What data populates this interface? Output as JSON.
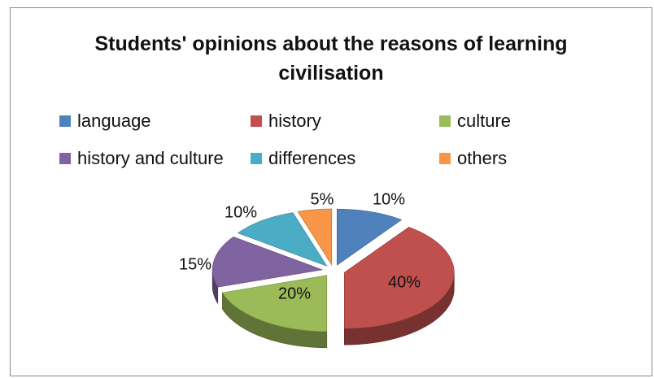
{
  "chart_data": {
    "type": "pie",
    "title": "Students' opinions about the reasons of learning civilisation",
    "title_lines": [
      "Students' opinions about the reasons of learning",
      "civilisation"
    ],
    "legend_position": "top",
    "exploded": true,
    "three_d": true,
    "slices": [
      {
        "label": "language",
        "value": 10,
        "value_label": "10%",
        "color": "#4F81BD"
      },
      {
        "label": "history",
        "value": 40,
        "value_label": "40%",
        "color": "#C0504D"
      },
      {
        "label": "culture",
        "value": 20,
        "value_label": "20%",
        "color": "#9BBB59"
      },
      {
        "label": "history and culture",
        "value": 15,
        "value_label": "15%",
        "color": "#8064A2"
      },
      {
        "label": "differences",
        "value": 10,
        "value_label": "10%",
        "color": "#4BACC6"
      },
      {
        "label": "others",
        "value": 5,
        "value_label": "5%",
        "color": "#F79646"
      }
    ]
  }
}
